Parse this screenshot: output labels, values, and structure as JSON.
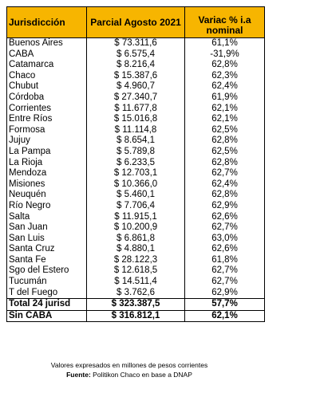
{
  "headers": {
    "jurisdiccion": "Jurisdicción",
    "parcial": "Parcial Agosto 2021",
    "variac_line1": "Variac % i.a",
    "variac_line2": "nominal"
  },
  "rows": [
    {
      "name": "Buenos Aires",
      "value": "$ 73.311,6",
      "pct": "61,1%"
    },
    {
      "name": "CABA",
      "value": "$ 6.575,4",
      "pct": "-31,9%"
    },
    {
      "name": "Catamarca",
      "value": "$ 8.216,4",
      "pct": "62,8%"
    },
    {
      "name": "Chaco",
      "value": "$ 15.387,6",
      "pct": "62,3%"
    },
    {
      "name": "Chubut",
      "value": "$ 4.960,7",
      "pct": "62,4%"
    },
    {
      "name": "Córdoba",
      "value": "$ 27.340,7",
      "pct": "61,9%"
    },
    {
      "name": "Corrientes",
      "value": "$ 11.677,8",
      "pct": "62,1%"
    },
    {
      "name": "Entre Ríos",
      "value": "$ 15.016,8",
      "pct": "62,1%"
    },
    {
      "name": "Formosa",
      "value": "$ 11.114,8",
      "pct": "62,5%"
    },
    {
      "name": "Jujuy",
      "value": "$ 8.654,1",
      "pct": "62,8%"
    },
    {
      "name": "La Pampa",
      "value": "$ 5.789,8",
      "pct": "62,5%"
    },
    {
      "name": "La Rioja",
      "value": "$ 6.233,5",
      "pct": "62,8%"
    },
    {
      "name": "Mendoza",
      "value": "$ 12.703,1",
      "pct": "62,7%"
    },
    {
      "name": "Misiones",
      "value": "$ 10.366,0",
      "pct": "62,4%"
    },
    {
      "name": "Neuquén",
      "value": "$ 5.460,1",
      "pct": "62,8%"
    },
    {
      "name": "Río Negro",
      "value": "$ 7.706,4",
      "pct": "62,9%"
    },
    {
      "name": "Salta",
      "value": "$ 11.915,1",
      "pct": "62,6%"
    },
    {
      "name": "San Juan",
      "value": "$ 10.200,9",
      "pct": "62,7%"
    },
    {
      "name": "San Luis",
      "value": "$ 6.861,8",
      "pct": "63,0%"
    },
    {
      "name": "Santa Cruz",
      "value": "$ 4.880,1",
      "pct": "62,6%"
    },
    {
      "name": "Santa Fe",
      "value": "$ 28.122,3",
      "pct": "61,8%"
    },
    {
      "name": "Sgo del Estero",
      "value": "$ 12.618,5",
      "pct": "62,7%"
    },
    {
      "name": "Tucumán",
      "value": "$ 14.511,4",
      "pct": "62,7%"
    },
    {
      "name": "T del Fuego",
      "value": "$ 3.762,6",
      "pct": "62,9%"
    }
  ],
  "totals": [
    {
      "name": "Total 24 jurisd",
      "value": "$ 323.387,5",
      "pct": "57,7%"
    },
    {
      "name": "Sin CABA",
      "value": "$ 316.812,1",
      "pct": "62,1%"
    }
  ],
  "footnote": {
    "line1": "Valores expresados en millones de pesos corrientes",
    "source_label": "Fuente:",
    "source_text": " Politikon Chaco en base a DNAP"
  },
  "colors": {
    "header_bg": "#f7b500"
  }
}
